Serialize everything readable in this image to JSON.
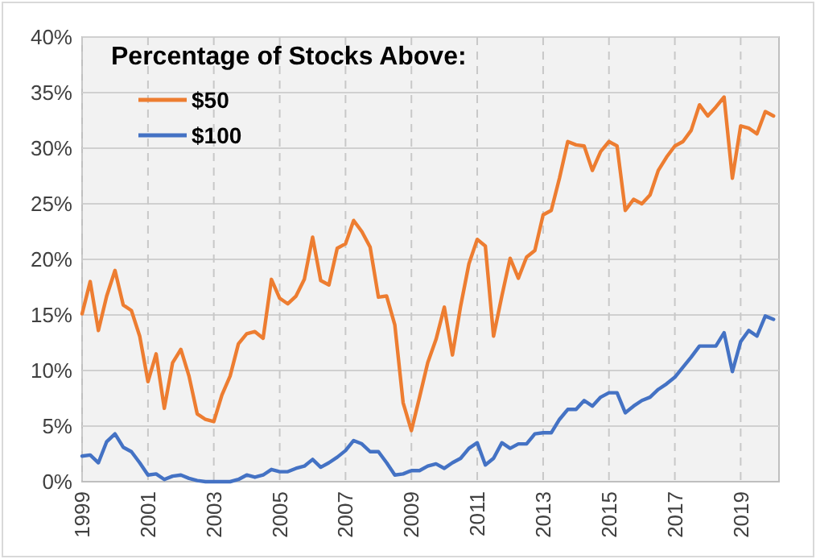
{
  "chart_data": {
    "type": "line",
    "legend_title": "Percentage of Stocks Above:",
    "legend": "top left",
    "grid": true,
    "x": [
      "1999-01",
      "1999-04",
      "1999-07",
      "1999-10",
      "2000-01",
      "2000-04",
      "2000-07",
      "2000-10",
      "2001-01",
      "2001-04",
      "2001-07",
      "2001-10",
      "2002-01",
      "2002-04",
      "2002-07",
      "2002-10",
      "2003-01",
      "2003-04",
      "2003-07",
      "2003-10",
      "2004-01",
      "2004-04",
      "2004-07",
      "2004-10",
      "2005-01",
      "2005-04",
      "2005-07",
      "2005-10",
      "2006-01",
      "2006-04",
      "2006-07",
      "2006-10",
      "2007-01",
      "2007-04",
      "2007-07",
      "2007-10",
      "2008-01",
      "2008-04",
      "2008-07",
      "2008-10",
      "2009-01",
      "2009-04",
      "2009-07",
      "2009-10",
      "2010-01",
      "2010-04",
      "2010-07",
      "2010-10",
      "2011-01",
      "2011-04",
      "2011-07",
      "2011-10",
      "2012-01",
      "2012-04",
      "2012-07",
      "2012-10",
      "2013-01",
      "2013-04",
      "2013-07",
      "2013-10",
      "2014-01",
      "2014-04",
      "2014-07",
      "2014-10",
      "2015-01",
      "2015-04",
      "2015-07",
      "2015-10",
      "2016-01",
      "2016-04",
      "2016-07",
      "2016-10",
      "2017-01",
      "2017-04",
      "2017-07",
      "2017-10",
      "2018-01",
      "2018-04",
      "2018-07",
      "2018-10",
      "2019-01",
      "2019-04",
      "2019-07",
      "2019-10",
      "2020-01"
    ],
    "xlim": [
      "1999-01",
      "2020-03"
    ],
    "xticks": [
      "1999",
      "2001",
      "2003",
      "2005",
      "2007",
      "2009",
      "2011",
      "2013",
      "2015",
      "2017",
      "2019"
    ],
    "ylim": [
      0,
      40
    ],
    "yticks": [
      {
        "value": 0,
        "label": "0%"
      },
      {
        "value": 5,
        "label": "5%"
      },
      {
        "value": 10,
        "label": "10%"
      },
      {
        "value": 15,
        "label": "15%"
      },
      {
        "value": 20,
        "label": "20%"
      },
      {
        "value": 25,
        "label": "25%"
      },
      {
        "value": 30,
        "label": "30%"
      },
      {
        "value": 35,
        "label": "35%"
      },
      {
        "value": 40,
        "label": "40%"
      }
    ],
    "series": [
      {
        "name": "$50",
        "color": "#ed7d31",
        "values": [
          15.1,
          18.0,
          13.6,
          16.7,
          19.0,
          15.9,
          15.4,
          13.1,
          9.0,
          11.5,
          6.6,
          10.7,
          11.9,
          9.5,
          6.1,
          5.6,
          5.4,
          7.8,
          9.5,
          12.4,
          13.3,
          13.5,
          12.9,
          18.2,
          16.5,
          16.0,
          16.7,
          18.2,
          22.0,
          18.1,
          17.7,
          21.0,
          21.4,
          23.5,
          22.5,
          21.1,
          16.6,
          16.7,
          14.1,
          7.1,
          4.6,
          7.6,
          10.7,
          12.8,
          15.7,
          11.4,
          15.8,
          19.6,
          21.8,
          21.2,
          13.1,
          16.7,
          20.1,
          18.3,
          20.2,
          20.8,
          24.0,
          24.4,
          27.3,
          30.6,
          30.3,
          30.2,
          28.0,
          29.7,
          30.6,
          30.2,
          24.4,
          25.4,
          25.0,
          25.8,
          28.0,
          29.2,
          30.2,
          30.6,
          31.6,
          33.9,
          32.9,
          33.7,
          34.6,
          27.3,
          32.0,
          31.8,
          31.3,
          33.3,
          32.9
        ]
      },
      {
        "name": "$100",
        "color": "#4472c4",
        "values": [
          2.3,
          2.4,
          1.7,
          3.6,
          4.3,
          3.1,
          2.7,
          1.7,
          0.6,
          0.7,
          0.2,
          0.5,
          0.6,
          0.3,
          0.1,
          0.0,
          0.0,
          0.0,
          0.0,
          0.2,
          0.6,
          0.4,
          0.6,
          1.1,
          0.9,
          0.9,
          1.2,
          1.4,
          2.0,
          1.3,
          1.7,
          2.2,
          2.8,
          3.7,
          3.4,
          2.7,
          2.7,
          1.7,
          0.6,
          0.7,
          1.0,
          1.0,
          1.4,
          1.6,
          1.2,
          1.7,
          2.1,
          3.0,
          3.5,
          1.5,
          2.1,
          3.5,
          3.0,
          3.4,
          3.4,
          4.3,
          4.4,
          4.4,
          5.6,
          6.5,
          6.5,
          7.3,
          6.8,
          7.6,
          8.0,
          8.0,
          6.2,
          6.8,
          7.3,
          7.6,
          8.3,
          8.8,
          9.4,
          10.3,
          11.2,
          12.2,
          12.2,
          12.2,
          13.4,
          9.9,
          12.6,
          13.6,
          13.1,
          14.9,
          14.6
        ]
      }
    ]
  }
}
